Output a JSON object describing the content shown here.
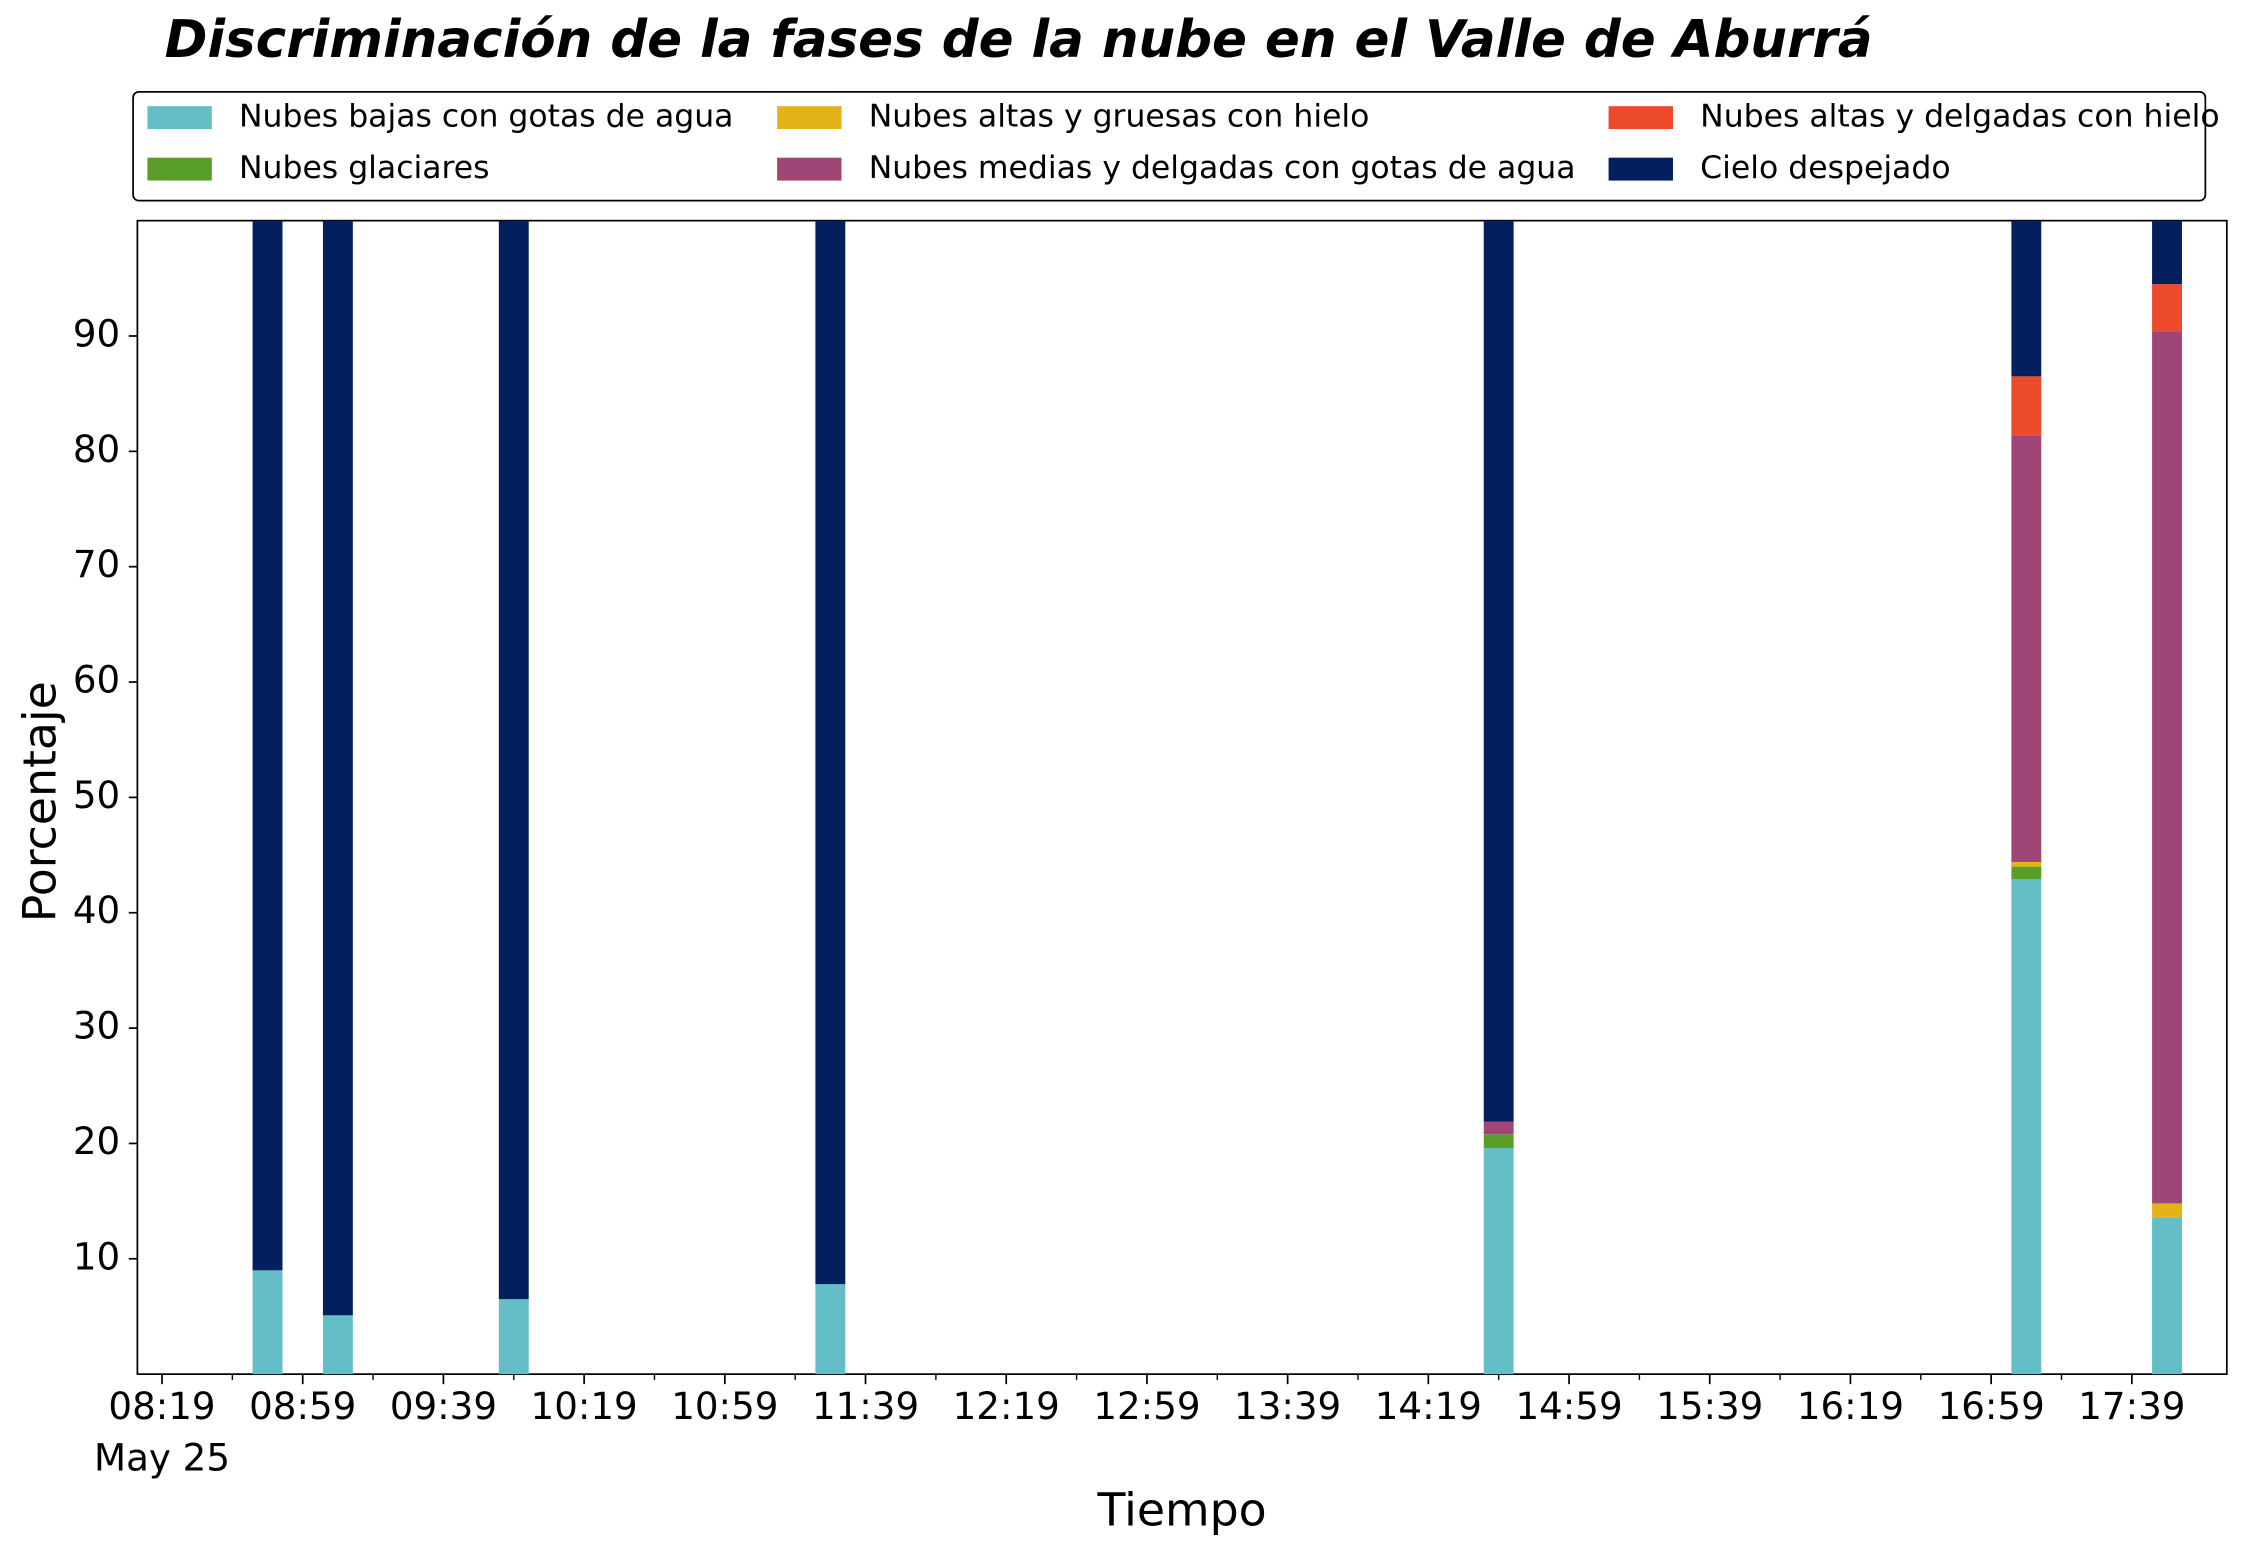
{
  "chart_data": {
    "type": "stacked_bar",
    "title": "Discriminación de la fases de la nube en el Valle de Aburrá",
    "x_label": "Tiempo",
    "y_label": "Porcentaje",
    "x": [
      "08:49",
      "09:09",
      "09:59",
      "11:29",
      "14:39",
      "17:09",
      "17:49"
    ],
    "xlim": [
      "08:12",
      "18:06"
    ],
    "xticks": [
      "08:19",
      "08:59",
      "09:39",
      "10:19",
      "10:59",
      "11:39",
      "12:19",
      "12:59",
      "13:39",
      "14:19",
      "14:59",
      "15:39",
      "16:19",
      "16:59",
      "17:39"
    ],
    "x_date_label": "May 25",
    "ylim": [
      0,
      100
    ],
    "yticks": [
      10,
      20,
      30,
      40,
      50,
      60,
      70,
      80,
      90
    ],
    "series": [
      {
        "name": "Nubes bajas con gotas de agua",
        "color": "#64bec8",
        "values": [
          9,
          5.1,
          6.5,
          7.8,
          19.6,
          42.9,
          13.6
        ]
      },
      {
        "name": "Nubes glaciares",
        "color": "#5a9e2a",
        "values": [
          0,
          0,
          0,
          0,
          1.2,
          1.1,
          0
        ]
      },
      {
        "name": "Nubes altas y gruesas con hielo",
        "color": "#e3b418",
        "values": [
          0,
          0,
          0,
          0,
          0,
          0.4,
          1.2
        ]
      },
      {
        "name": "Nubes medias y delgadas con gotas de agua",
        "color": "#a04677",
        "values": [
          0,
          0,
          0,
          0,
          1.1,
          37.0,
          75.6
        ]
      },
      {
        "name": "Nubes altas y delgadas con hielo",
        "color": "#ec4a2a",
        "values": [
          0,
          0,
          0,
          0,
          0,
          5.1,
          4.1
        ]
      },
      {
        "name": "Cielo despejado",
        "color": "#03205e",
        "values": [
          91,
          94.9,
          93.5,
          92.2,
          78.1,
          13.5,
          5.5
        ]
      }
    ]
  }
}
